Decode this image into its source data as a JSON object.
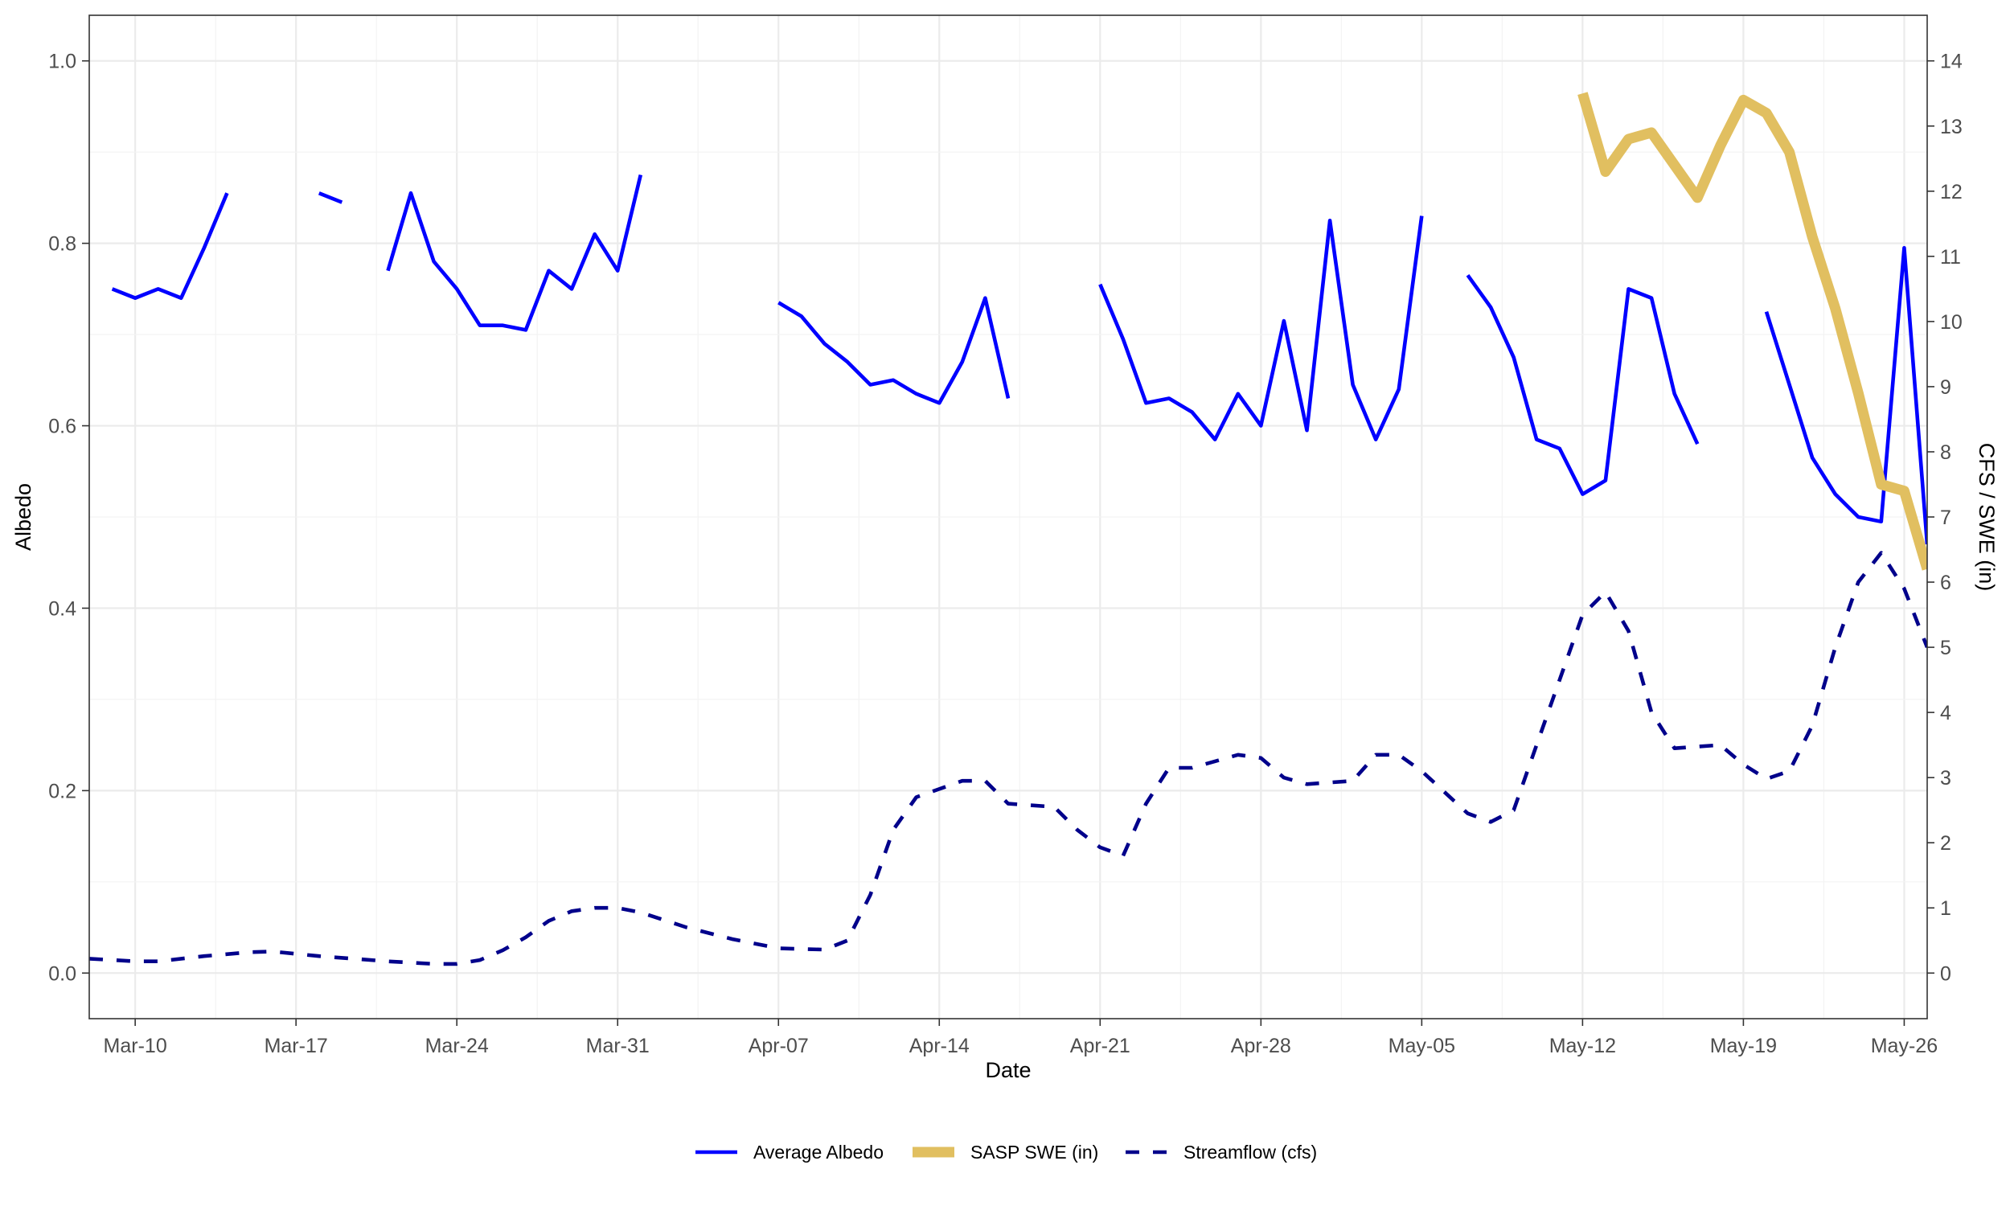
{
  "chart_data": {
    "type": "line",
    "xlabel": "Date",
    "ylabel_left": "Albedo",
    "ylabel_right": "CFS / SWE (in)",
    "x_range": [
      "2023-03-08",
      "2023-05-27"
    ],
    "x_ticks": [
      {
        "date": "2023-03-10",
        "label": "Mar-10"
      },
      {
        "date": "2023-03-17",
        "label": "Mar-17"
      },
      {
        "date": "2023-03-24",
        "label": "Mar-24"
      },
      {
        "date": "2023-03-31",
        "label": "Mar-31"
      },
      {
        "date": "2023-04-07",
        "label": "Apr-07"
      },
      {
        "date": "2023-04-14",
        "label": "Apr-14"
      },
      {
        "date": "2023-04-21",
        "label": "Apr-21"
      },
      {
        "date": "2023-04-28",
        "label": "Apr-28"
      },
      {
        "date": "2023-05-05",
        "label": "May-05"
      },
      {
        "date": "2023-05-12",
        "label": "May-12"
      },
      {
        "date": "2023-05-19",
        "label": "May-19"
      },
      {
        "date": "2023-05-26",
        "label": "May-26"
      }
    ],
    "y_left": {
      "range": [
        -0.05,
        1.05
      ],
      "ticks": [
        "0.0",
        "0.2",
        "0.4",
        "0.6",
        "0.8",
        "1.0"
      ]
    },
    "y_right": {
      "range": [
        -0.7,
        14.7
      ],
      "ticks": [
        "0",
        "1",
        "2",
        "3",
        "4",
        "5",
        "6",
        "7",
        "8",
        "9",
        "10",
        "11",
        "12",
        "13",
        "14"
      ]
    },
    "grid": true,
    "legend_position": "bottom",
    "colors": {
      "albedo": "#0000ff",
      "swe": "#e1bf60",
      "streamflow": "#00008b"
    },
    "series": [
      {
        "name": "Average Albedo",
        "axis": "left",
        "style": "solid",
        "segments": [
          [
            [
              "2023-03-09",
              0.75
            ],
            [
              "2023-03-10",
              0.74
            ],
            [
              "2023-03-11",
              0.75
            ],
            [
              "2023-03-12",
              0.74
            ],
            [
              "2023-03-13",
              0.795
            ],
            [
              "2023-03-14",
              0.855
            ]
          ],
          [
            [
              "2023-03-18",
              0.855
            ],
            [
              "2023-03-19",
              0.845
            ]
          ],
          [
            [
              "2023-03-21",
              0.77
            ],
            [
              "2023-03-22",
              0.855
            ],
            [
              "2023-03-23",
              0.78
            ],
            [
              "2023-03-24",
              0.75
            ],
            [
              "2023-03-25",
              0.71
            ],
            [
              "2023-03-26",
              0.71
            ],
            [
              "2023-03-27",
              0.705
            ],
            [
              "2023-03-28",
              0.77
            ],
            [
              "2023-03-29",
              0.75
            ],
            [
              "2023-03-30",
              0.81
            ],
            [
              "2023-03-31",
              0.77
            ],
            [
              "2023-04-01",
              0.875
            ]
          ],
          [
            [
              "2023-04-07",
              0.735
            ],
            [
              "2023-04-08",
              0.72
            ],
            [
              "2023-04-09",
              0.69
            ],
            [
              "2023-04-10",
              0.67
            ],
            [
              "2023-04-11",
              0.645
            ],
            [
              "2023-04-12",
              0.65
            ],
            [
              "2023-04-13",
              0.635
            ],
            [
              "2023-04-14",
              0.625
            ],
            [
              "2023-04-15",
              0.67
            ],
            [
              "2023-04-16",
              0.74
            ],
            [
              "2023-04-17",
              0.63
            ]
          ],
          [
            [
              "2023-04-21",
              0.755
            ],
            [
              "2023-04-22",
              0.695
            ],
            [
              "2023-04-23",
              0.625
            ],
            [
              "2023-04-24",
              0.63
            ],
            [
              "2023-04-25",
              0.615
            ],
            [
              "2023-04-26",
              0.585
            ],
            [
              "2023-04-27",
              0.635
            ],
            [
              "2023-04-28",
              0.6
            ],
            [
              "2023-04-29",
              0.715
            ],
            [
              "2023-04-30",
              0.595
            ],
            [
              "2023-05-01",
              0.825
            ],
            [
              "2023-05-02",
              0.645
            ],
            [
              "2023-05-03",
              0.585
            ],
            [
              "2023-05-04",
              0.64
            ],
            [
              "2023-05-05",
              0.83
            ]
          ],
          [
            [
              "2023-05-07",
              0.765
            ],
            [
              "2023-05-08",
              0.73
            ],
            [
              "2023-05-09",
              0.675
            ],
            [
              "2023-05-10",
              0.585
            ],
            [
              "2023-05-11",
              0.575
            ],
            [
              "2023-05-12",
              0.525
            ],
            [
              "2023-05-13",
              0.54
            ],
            [
              "2023-05-14",
              0.75
            ],
            [
              "2023-05-15",
              0.74
            ],
            [
              "2023-05-16",
              0.635
            ],
            [
              "2023-05-17",
              0.58
            ]
          ],
          [
            [
              "2023-05-20",
              0.725
            ],
            [
              "2023-05-21",
              0.645
            ],
            [
              "2023-05-22",
              0.565
            ],
            [
              "2023-05-23",
              0.525
            ],
            [
              "2023-05-24",
              0.5
            ],
            [
              "2023-05-25",
              0.495
            ],
            [
              "2023-05-26",
              0.795
            ],
            [
              "2023-05-27",
              0.47
            ]
          ]
        ]
      },
      {
        "name": "SASP SWE (in)",
        "axis": "right",
        "style": "thick",
        "segments": [
          [
            [
              "2023-05-12",
              13.5
            ],
            [
              "2023-05-13",
              12.3
            ],
            [
              "2023-05-14",
              12.8
            ],
            [
              "2023-05-15",
              12.9
            ],
            [
              "2023-05-16",
              12.4
            ],
            [
              "2023-05-17",
              11.9
            ],
            [
              "2023-05-18",
              12.7
            ],
            [
              "2023-05-19",
              13.4
            ],
            [
              "2023-05-20",
              13.2
            ],
            [
              "2023-05-21",
              12.6
            ],
            [
              "2023-05-22",
              11.3
            ],
            [
              "2023-05-23",
              10.2
            ],
            [
              "2023-05-24",
              8.9
            ],
            [
              "2023-05-25",
              7.5
            ],
            [
              "2023-05-26",
              7.4
            ],
            [
              "2023-05-27",
              6.2
            ]
          ]
        ]
      },
      {
        "name": "Streamflow (cfs)",
        "axis": "right",
        "style": "dashed",
        "segments": [
          [
            [
              "2023-03-08",
              0.22
            ],
            [
              "2023-03-10",
              0.18
            ],
            [
              "2023-03-11",
              0.18
            ],
            [
              "2023-03-13",
              0.26
            ],
            [
              "2023-03-15",
              0.32
            ],
            [
              "2023-03-16",
              0.33
            ],
            [
              "2023-03-18",
              0.26
            ],
            [
              "2023-03-21",
              0.18
            ],
            [
              "2023-03-23",
              0.14
            ],
            [
              "2023-03-24",
              0.14
            ],
            [
              "2023-03-25",
              0.2
            ],
            [
              "2023-03-26",
              0.35
            ],
            [
              "2023-03-27",
              0.55
            ],
            [
              "2023-03-28",
              0.8
            ],
            [
              "2023-03-29",
              0.95
            ],
            [
              "2023-03-30",
              1.0
            ],
            [
              "2023-03-31",
              1.0
            ],
            [
              "2023-04-01",
              0.93
            ],
            [
              "2023-04-03",
              0.7
            ],
            [
              "2023-04-05",
              0.52
            ],
            [
              "2023-04-07",
              0.38
            ],
            [
              "2023-04-09",
              0.36
            ],
            [
              "2023-04-10",
              0.5
            ],
            [
              "2023-04-11",
              1.2
            ],
            [
              "2023-04-12",
              2.2
            ],
            [
              "2023-04-13",
              2.7
            ],
            [
              "2023-04-15",
              2.95
            ],
            [
              "2023-04-16",
              2.95
            ],
            [
              "2023-04-17",
              2.6
            ],
            [
              "2023-04-19",
              2.55
            ],
            [
              "2023-04-20",
              2.2
            ],
            [
              "2023-04-21",
              1.93
            ],
            [
              "2023-04-22",
              1.8
            ],
            [
              "2023-04-23",
              2.6
            ],
            [
              "2023-04-24",
              3.15
            ],
            [
              "2023-04-25",
              3.15
            ],
            [
              "2023-04-27",
              3.35
            ],
            [
              "2023-04-28",
              3.3
            ],
            [
              "2023-04-29",
              3.0
            ],
            [
              "2023-04-30",
              2.9
            ],
            [
              "2023-05-02",
              2.95
            ],
            [
              "2023-05-03",
              3.35
            ],
            [
              "2023-05-04",
              3.35
            ],
            [
              "2023-05-05",
              3.1
            ],
            [
              "2023-05-07",
              2.45
            ],
            [
              "2023-05-08",
              2.32
            ],
            [
              "2023-05-09",
              2.5
            ],
            [
              "2023-05-10",
              3.5
            ],
            [
              "2023-05-11",
              4.5
            ],
            [
              "2023-05-12",
              5.5
            ],
            [
              "2023-05-13",
              5.85
            ],
            [
              "2023-05-14",
              5.25
            ],
            [
              "2023-05-15",
              4.0
            ],
            [
              "2023-05-16",
              3.45
            ],
            [
              "2023-05-18",
              3.5
            ],
            [
              "2023-05-19",
              3.2
            ],
            [
              "2023-05-20",
              2.98
            ],
            [
              "2023-05-21",
              3.1
            ],
            [
              "2023-05-22",
              3.8
            ],
            [
              "2023-05-23",
              5.0
            ],
            [
              "2023-05-24",
              6.0
            ],
            [
              "2023-05-25",
              6.45
            ],
            [
              "2023-05-26",
              5.9
            ],
            [
              "2023-05-27",
              5.0
            ]
          ]
        ]
      }
    ]
  }
}
